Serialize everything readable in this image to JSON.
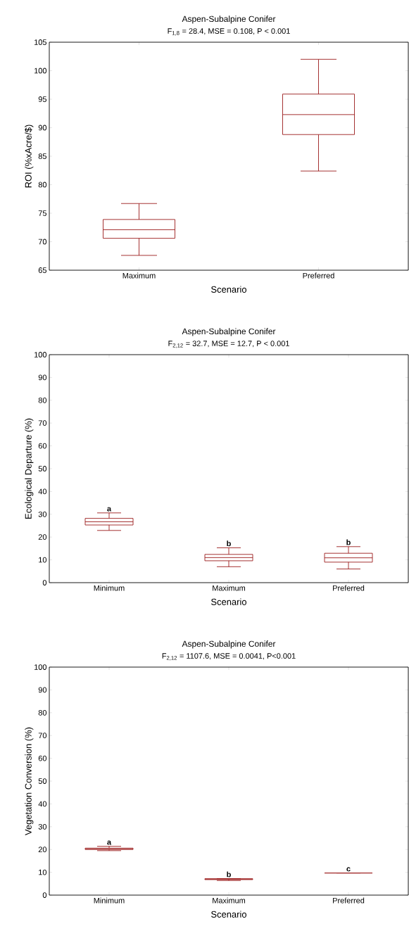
{
  "chart_data": [
    {
      "type": "box",
      "title": "Aspen-Subalpine Conifer",
      "subtitle": "F$_{1,8}$ = 28.4, MSE = 0.108, P < 0.001",
      "xlabel": "Scenario",
      "ylabel": "ROI (%xAcre/$)",
      "color": "#9b1c1c",
      "categories": [
        "Maximum",
        "Preferred"
      ],
      "boxes": [
        {
          "low": 67.6,
          "q1": 70.6,
          "median": 72.1,
          "q3": 73.9,
          "high": 76.7
        },
        {
          "low": 82.4,
          "q1": 88.8,
          "median": 92.3,
          "q3": 95.9,
          "high": 102
        }
      ],
      "ylim": [
        65,
        105
      ],
      "yticks": [
        65,
        70,
        75,
        80,
        85,
        90,
        95,
        100,
        105
      ]
    },
    {
      "type": "box",
      "title": "Aspen-Subalpine Conifer",
      "subtitle": "F$_{2,12}$ = 32.7, MSE = 12.7, P < 0.001",
      "xlabel": "Scenario",
      "ylabel": "Ecological Departure (%)",
      "color": "#9b1c1c",
      "categories": [
        "Minimum",
        "Maximum",
        "Preferred"
      ],
      "boxes": [
        {
          "low": 22.9,
          "q1": 25.3,
          "median": 26.7,
          "q3": 28.2,
          "high": 30.6
        },
        {
          "low": 7,
          "q1": 9.6,
          "median": 11,
          "q3": 12.4,
          "high": 15.3
        },
        {
          "low": 6,
          "q1": 9,
          "median": 10.9,
          "q3": 12.9,
          "high": 15.8
        }
      ],
      "ylim": [
        0,
        100
      ],
      "yticks": [
        0,
        10,
        20,
        30,
        40,
        50,
        60,
        70,
        80,
        90,
        100
      ],
      "annotations": [
        {
          "text": "a",
          "x": "Minimum",
          "y": 30.6
        },
        {
          "text": "b",
          "x": "Maximum",
          "y": 15.3
        },
        {
          "text": "b",
          "x": "Preferred",
          "y": 15.8
        }
      ]
    },
    {
      "type": "box",
      "title": "Aspen-Subalpine Conifer",
      "subtitle": "F$_{2,12}$ = 1107.6, MSE = 0.0041, P<0.001",
      "xlabel": "Scenario",
      "ylabel": "Vegetation Conversion (%)",
      "color": "#9b1c1c",
      "categories": [
        "Minimum",
        "Maximum",
        "Preferred"
      ],
      "boxes": [
        {
          "low": 19.5,
          "q1": 20.0,
          "median": 20.3,
          "q3": 20.6,
          "high": 21.4
        },
        {
          "low": 6.4,
          "q1": 6.8,
          "median": 7.0,
          "q3": 7.2,
          "high": 7.2
        },
        {
          "low": 9.7,
          "q1": 9.7,
          "median": 9.7,
          "q3": 9.7,
          "high": 9.7
        }
      ],
      "ylim": [
        0,
        100
      ],
      "yticks": [
        0,
        10,
        20,
        30,
        40,
        50,
        60,
        70,
        80,
        90,
        100
      ],
      "annotations": [
        {
          "text": "a",
          "x": "Minimum",
          "y": 21.4
        },
        {
          "text": "b",
          "x": "Maximum",
          "y": 7.2
        },
        {
          "text": "c",
          "x": "Preferred",
          "y": 9.7
        }
      ]
    }
  ]
}
